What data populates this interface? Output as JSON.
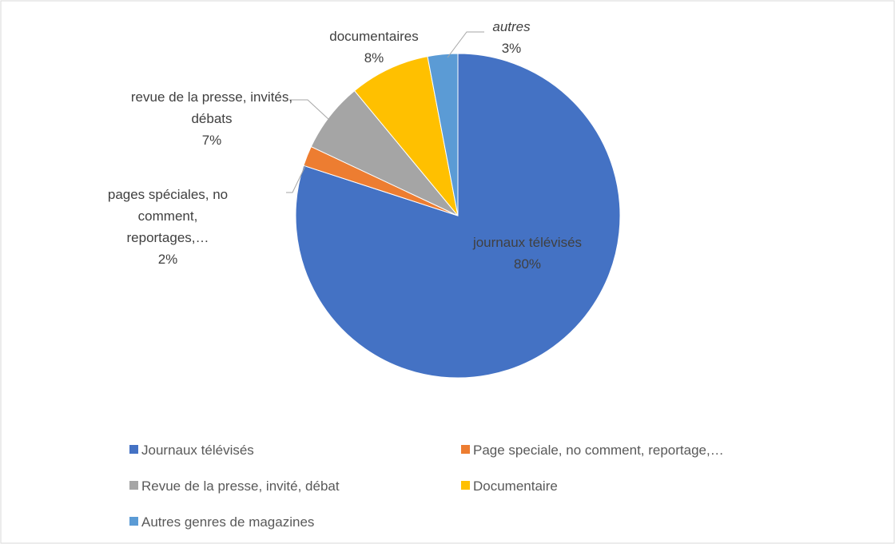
{
  "chart_data": {
    "type": "pie",
    "categories": [
      "Journaux télévisés",
      "Page speciale, no comment, reportage,…",
      "Revue de la presse, invité, débat",
      "Documentaire",
      "Autres genres de magazines"
    ],
    "label_names": [
      "journaux télévisés",
      "pages spéciales, no comment, reportages,…",
      "revue de la presse, invités, débats",
      "documentaires",
      "autres"
    ],
    "values": [
      80,
      2,
      7,
      8,
      3
    ],
    "value_labels": [
      "80%",
      "2%",
      "7%",
      "8%",
      "3%"
    ],
    "colors": [
      "#4472c4",
      "#ed7d31",
      "#a5a5a5",
      "#ffc000",
      "#5b9bd5"
    ]
  }
}
